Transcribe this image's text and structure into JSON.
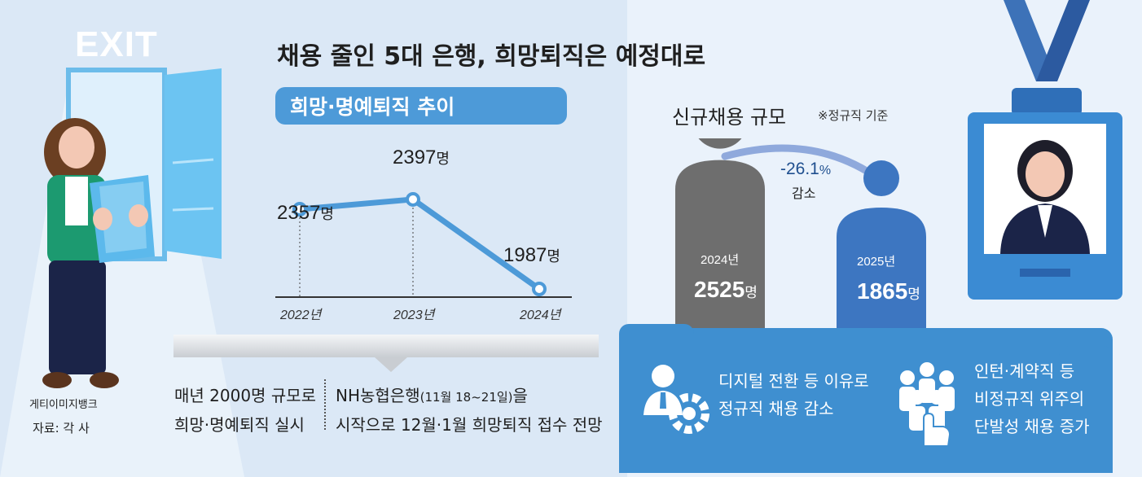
{
  "header": {
    "exit_sign": "EXIT",
    "title": "채용 줄인 5대 은행, 희망퇴직은 예정대로",
    "subtitle": "희망·명예퇴직 추이"
  },
  "chart_data": [
    {
      "type": "line",
      "title": "희망·명예퇴직 추이",
      "categories": [
        "2022년",
        "2023년",
        "2024년"
      ],
      "values": [
        2357,
        2397,
        1987
      ],
      "value_labels": [
        "2357",
        "2397",
        "1987"
      ],
      "unit": "명",
      "color": "#4d9ad8"
    },
    {
      "type": "bar",
      "title": "신규채용 규모",
      "note": "※정규직 기준",
      "categories": [
        "2024년",
        "2025년"
      ],
      "values": [
        2525,
        1865
      ],
      "value_labels": [
        "2525",
        "1865"
      ],
      "unit": "명",
      "colors": [
        "#6e6e6e",
        "#3d76c1"
      ],
      "change_label": "-26.1",
      "change_unit": "%",
      "change_word": "감소"
    }
  ],
  "bottom": {
    "left_line1": "매년 2000명 규모로",
    "left_line2": "희망·명예퇴직 실시",
    "right_line1_main": "NH농협은행",
    "right_line1_paren": "(11월 18~21일)",
    "right_line1_end": "을",
    "right_line2": "시작으로 12월·1월 희망퇴직 접수 전망"
  },
  "credits": {
    "image": "게티이미지뱅크",
    "source": "자료: 각 사"
  },
  "reasons": {
    "left_line1": "디지털 전환 등 이유로",
    "left_line2": "정규직 채용 감소",
    "right_line1": "인턴·계약직 등",
    "right_line2": "비정규직 위주의",
    "right_line3": "단발성 채용 증가"
  },
  "colors": {
    "accent_blue": "#4d9ad8",
    "panel_blue": "#3f8fd0",
    "bar_2024": "#6e6e6e",
    "bar_2025": "#3d76c1"
  },
  "icons": [
    "exit-door-icon",
    "person-holding-papers-icon",
    "person-gear-icon",
    "group-click-icon",
    "id-badge-icon"
  ]
}
